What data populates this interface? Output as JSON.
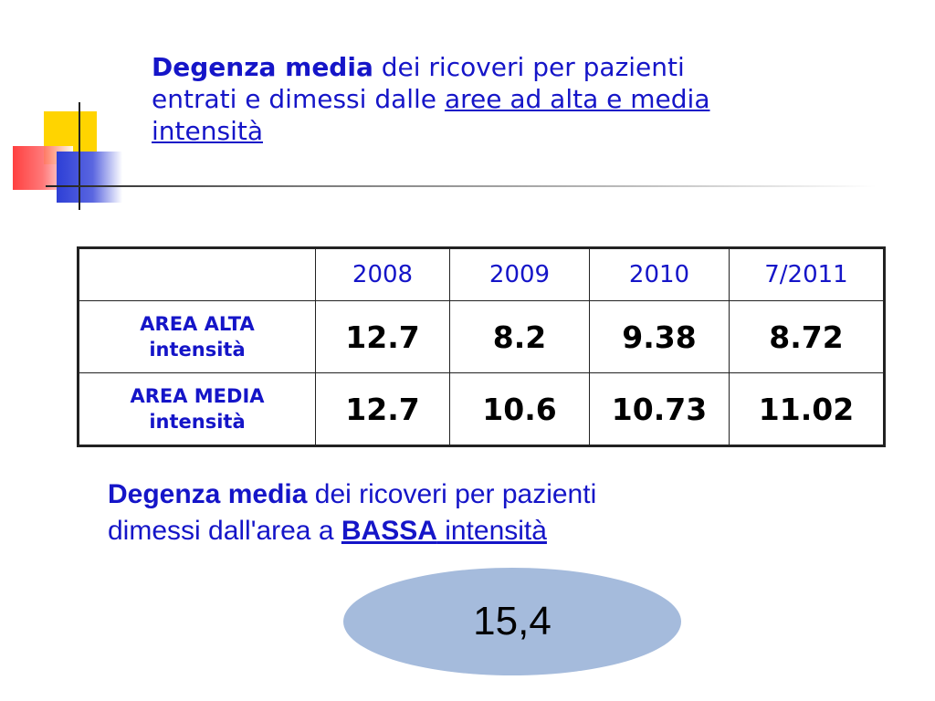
{
  "title": {
    "bold": "Degenza media",
    "line1_rest": " dei ricoveri per pazienti",
    "line2_plain": "entrati e dimessi dalle ",
    "line2_underlined": "aree ad alta e media",
    "line3_underlined": "intensità"
  },
  "table": {
    "columns": [
      "",
      "2008",
      "2009",
      "2010",
      "7/2011"
    ],
    "rows": [
      {
        "label_line1": "AREA ALTA",
        "label_line2": "intensità",
        "values": [
          "12.7",
          "8.2",
          "9.38",
          "8.72"
        ]
      },
      {
        "label_line1": "AREA MEDIA",
        "label_line2": "intensità",
        "values": [
          "12.7",
          "10.6",
          "10.73",
          "11.02"
        ]
      }
    ]
  },
  "subtitle": {
    "bold": "Degenza media",
    "line1_rest": " dei ricoveri per pazienti",
    "line2_plain": "dimessi dall'area a ",
    "line2_bold_underlined": "BASSA",
    "line2_underlined": " intensità"
  },
  "bassa_value": "15,4",
  "colors": {
    "text_blue": "#1515c8",
    "ellipse_fill": "#a5bbdc",
    "logo_yellow": "#ffd400",
    "logo_red": "#ff2b2b",
    "logo_blue": "#2d3fd6"
  }
}
